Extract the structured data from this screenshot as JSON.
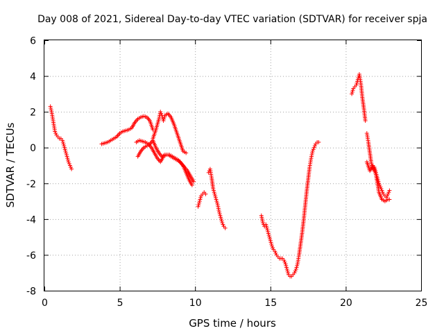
{
  "chart_data": {
    "type": "scatter",
    "title": "Day 008 of 2021, Sidereal Day-to-day VTEC variation (SDTVAR) for receiver spja",
    "xlabel": "GPS time / hours",
    "ylabel": "SDTVAR / TECUs",
    "xlim": [
      0,
      25
    ],
    "ylim": [
      -8,
      6
    ],
    "xticks": [
      0,
      5,
      10,
      15,
      20,
      25
    ],
    "xtick_labels": [
      "0",
      "5",
      "10",
      "15",
      "20",
      "25"
    ],
    "yticks": [
      -8,
      -6,
      -4,
      -2,
      0,
      2,
      4,
      6
    ],
    "ytick_labels": [
      "-8",
      "-6",
      "-4",
      "-2",
      "0",
      "2",
      "4",
      "6"
    ],
    "grid": true,
    "marker": "+",
    "color": "#ff0000",
    "series": [
      {
        "name": "seg-1",
        "x": [
          0.4,
          0.5,
          0.6,
          0.7,
          0.8,
          0.9,
          1.0,
          1.1,
          1.2,
          1.3,
          1.4,
          1.5,
          1.6,
          1.7,
          1.8
        ],
        "y": [
          2.3,
          1.9,
          1.4,
          0.9,
          0.7,
          0.6,
          0.5,
          0.5,
          0.4,
          0.1,
          -0.2,
          -0.5,
          -0.8,
          -1.0,
          -1.2
        ]
      },
      {
        "name": "seg-2",
        "x": [
          3.8,
          4.0,
          4.2,
          4.4,
          4.6,
          4.8,
          5.0,
          5.2,
          5.4,
          5.6,
          5.8,
          6.0,
          6.2,
          6.4,
          6.6,
          6.8,
          7.0,
          7.2
        ],
        "y": [
          0.2,
          0.25,
          0.3,
          0.4,
          0.5,
          0.6,
          0.8,
          0.9,
          0.95,
          1.0,
          1.1,
          1.4,
          1.6,
          1.7,
          1.75,
          1.7,
          1.5,
          1.0
        ]
      },
      {
        "name": "seg-3",
        "x": [
          7.2,
          7.4,
          7.6,
          7.7,
          7.8,
          7.9,
          8.0,
          8.2,
          8.4,
          8.6,
          8.8,
          9.0,
          9.2,
          9.4
        ],
        "y": [
          0.5,
          1.0,
          1.6,
          2.0,
          1.8,
          1.5,
          1.8,
          1.9,
          1.7,
          1.3,
          0.8,
          0.3,
          -0.2,
          -0.3
        ]
      },
      {
        "name": "seg-4",
        "x": [
          6.1,
          6.3,
          6.5,
          6.7,
          6.9,
          7.1,
          7.3,
          7.5,
          7.7,
          7.9,
          8.1,
          8.3,
          8.5,
          8.7,
          8.9,
          9.1,
          9.3,
          9.5,
          9.7,
          9.9
        ],
        "y": [
          0.3,
          0.4,
          0.35,
          0.3,
          0.2,
          0.0,
          -0.3,
          -0.6,
          -0.8,
          -0.5,
          -0.4,
          -0.4,
          -0.5,
          -0.6,
          -0.7,
          -0.9,
          -1.1,
          -1.3,
          -1.6,
          -1.9
        ]
      },
      {
        "name": "seg-5",
        "x": [
          6.2,
          6.4,
          6.6,
          6.8,
          7.0,
          7.2,
          7.4,
          7.6,
          7.8,
          8.0,
          8.2,
          8.4,
          8.6,
          8.8,
          9.0,
          9.2,
          9.4,
          9.6,
          9.8
        ],
        "y": [
          -0.5,
          -0.2,
          0.0,
          0.1,
          0.2,
          0.4,
          0.0,
          -0.3,
          -0.5,
          -0.4,
          -0.4,
          -0.5,
          -0.6,
          -0.7,
          -0.8,
          -1.0,
          -1.4,
          -1.8,
          -2.1
        ]
      },
      {
        "name": "seg-6",
        "x": [
          10.2,
          10.3,
          10.4,
          10.5,
          10.6,
          10.7
        ],
        "y": [
          -3.3,
          -3.0,
          -2.7,
          -2.6,
          -2.5,
          -2.6
        ]
      },
      {
        "name": "seg-7",
        "x": [
          10.9,
          11.0,
          11.1,
          11.2,
          11.3,
          11.4,
          11.5,
          11.6,
          11.7,
          11.8,
          11.9,
          12.0
        ],
        "y": [
          -1.4,
          -1.2,
          -1.7,
          -2.3,
          -2.6,
          -2.9,
          -3.2,
          -3.6,
          -3.9,
          -4.2,
          -4.4,
          -4.5
        ]
      },
      {
        "name": "seg-8",
        "x": [
          14.4,
          14.5,
          14.6,
          14.7,
          14.8,
          14.9,
          15.0,
          15.1,
          15.2,
          15.3,
          15.4,
          15.5,
          15.6,
          15.7,
          15.8,
          15.9,
          16.0,
          16.1,
          16.2,
          16.3,
          16.4,
          16.5,
          16.6,
          16.7,
          16.8,
          16.9,
          17.0,
          17.1,
          17.2,
          17.3,
          17.4,
          17.5,
          17.6,
          17.7,
          17.8,
          17.9,
          18.0,
          18.1,
          18.2
        ],
        "y": [
          -3.8,
          -4.2,
          -4.4,
          -4.3,
          -4.6,
          -4.9,
          -5.2,
          -5.5,
          -5.7,
          -5.8,
          -6.0,
          -6.1,
          -6.2,
          -6.2,
          -6.2,
          -6.3,
          -6.5,
          -6.8,
          -7.1,
          -7.2,
          -7.2,
          -7.1,
          -7.0,
          -6.8,
          -6.5,
          -6.0,
          -5.4,
          -4.8,
          -4.1,
          -3.3,
          -2.5,
          -1.8,
          -1.1,
          -0.6,
          -0.2,
          0.0,
          0.2,
          0.3,
          0.3
        ]
      },
      {
        "name": "seg-9",
        "x": [
          20.4,
          20.5,
          20.6,
          20.7,
          20.8,
          20.9,
          21.0,
          21.1,
          21.2,
          21.3
        ],
        "y": [
          3.0,
          3.3,
          3.4,
          3.5,
          3.8,
          4.1,
          3.6,
          2.8,
          2.2,
          1.5
        ]
      },
      {
        "name": "seg-10",
        "x": [
          21.4,
          21.5,
          21.6,
          21.7,
          21.8,
          21.9,
          22.0,
          22.1,
          22.2,
          22.3,
          22.4,
          22.5,
          22.6,
          22.7,
          22.8,
          22.9
        ],
        "y": [
          0.8,
          0.3,
          -0.3,
          -0.9,
          -1.2,
          -1.1,
          -1.4,
          -1.7,
          -2.0,
          -2.2,
          -2.4,
          -2.6,
          -2.7,
          -2.8,
          -2.6,
          -2.4
        ]
      },
      {
        "name": "seg-11",
        "x": [
          21.4,
          21.6,
          21.8,
          22.0,
          22.2,
          22.4,
          22.6,
          22.8,
          22.9
        ],
        "y": [
          -0.8,
          -1.3,
          -1.0,
          -1.5,
          -2.5,
          -2.9,
          -3.0,
          -2.9,
          -2.9
        ]
      }
    ]
  }
}
